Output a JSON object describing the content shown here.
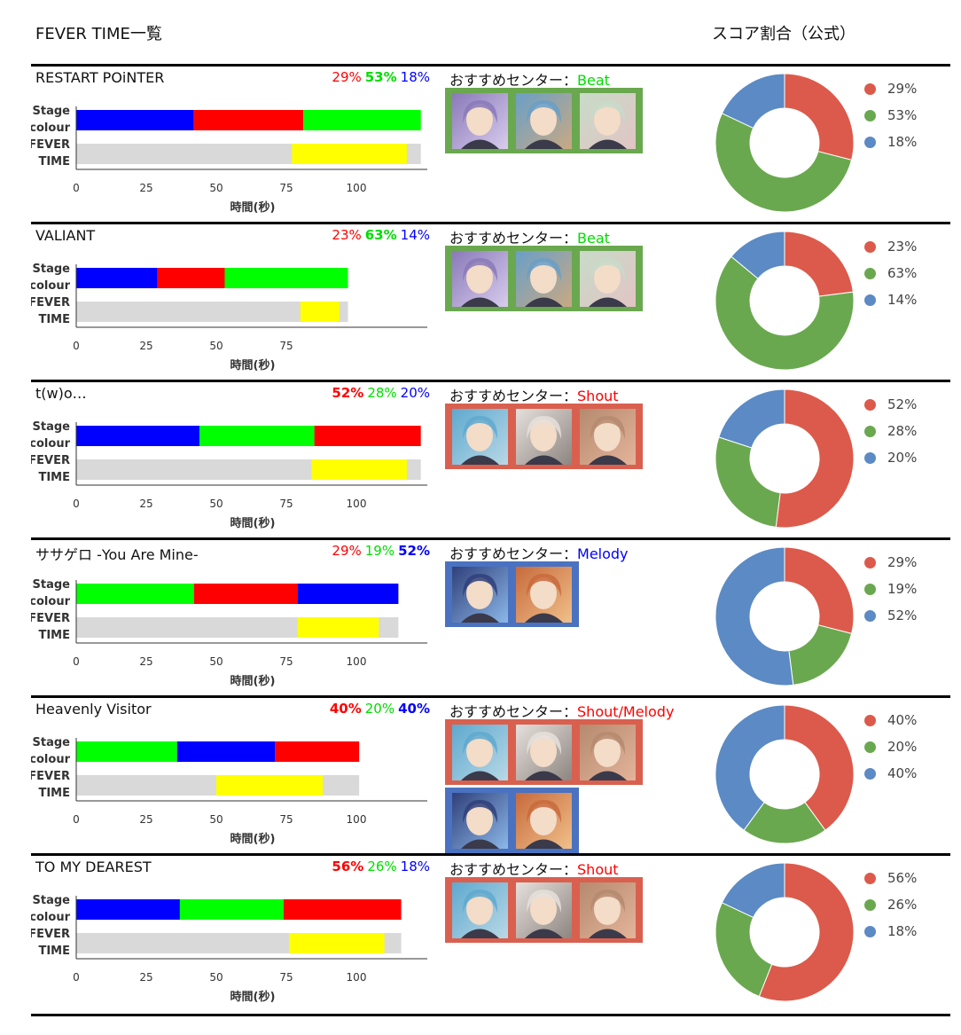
{
  "header": {
    "left_title": "FEVER TIME一覧",
    "right_title": "スコア割合（公式）"
  },
  "labels": {
    "rec_prefix": "おすすめセンター：",
    "stage_line1": "Stage",
    "stage_line2": "colour",
    "fever_line1": "FEVER",
    "fever_line2": "TIME",
    "xlabel": "時間(秒)"
  },
  "colors": {
    "stage_red": "#ff0000",
    "stage_green": "#00ff00",
    "stage_blue": "#0000ff",
    "fever": "#ffff00",
    "fever_track": "#d9d9d9",
    "pie_red": "#dc5a4b",
    "pie_green": "#6aa84f",
    "pie_blue": "#5b8ac4",
    "box_green": "#6aa84f",
    "box_red": "#d9604f",
    "box_blue": "#4a72c0",
    "text_red": "#ff0000",
    "text_green": "#00dd00",
    "text_blue": "#0000ff"
  },
  "chart_data": [
    {
      "type": "bar",
      "title": "RESTART POiNTER",
      "pct_red": "29%",
      "pct_green": "53%",
      "pct_blue": "18%",
      "bold": "green",
      "stage": [
        {
          "color": "blue",
          "start": 0,
          "end": 42
        },
        {
          "color": "red",
          "start": 42,
          "end": 81
        },
        {
          "color": "green",
          "start": 81,
          "end": 123
        }
      ],
      "fever": {
        "start": 77,
        "end": 118
      },
      "total": 123,
      "xticks": [
        0,
        25,
        50,
        75,
        100
      ],
      "rec_center": "Beat",
      "rec_color": "green",
      "card_boxes": [
        {
          "color": "green",
          "cards": [
            {
              "name": "card-purple-hair",
              "c1": "#8a79b8",
              "c2": "#d8ccee"
            },
            {
              "name": "card-brown-hair",
              "c1": "#6a9fc7",
              "c2": "#c9a982"
            },
            {
              "name": "card-pink-hair",
              "c1": "#c8dbc9",
              "c2": "#e2c4c4"
            }
          ]
        }
      ],
      "pie": {
        "red": 29,
        "green": 53,
        "blue": 18
      },
      "legend": [
        "29%",
        "53%",
        "18%"
      ]
    },
    {
      "type": "bar",
      "title": "VALIANT",
      "pct_red": "23%",
      "pct_green": "63%",
      "pct_blue": "14%",
      "bold": "green",
      "stage": [
        {
          "color": "blue",
          "start": 0,
          "end": 29
        },
        {
          "color": "red",
          "start": 29,
          "end": 53
        },
        {
          "color": "green",
          "start": 53,
          "end": 97
        }
      ],
      "fever": {
        "start": 80,
        "end": 94
      },
      "total": 97,
      "xticks": [
        0,
        25,
        50,
        75
      ],
      "rec_center": "Beat",
      "rec_color": "green",
      "card_boxes": [
        {
          "color": "green",
          "cards": [
            {
              "name": "card-purple-hair",
              "c1": "#8a79b8",
              "c2": "#d8ccee"
            },
            {
              "name": "card-brown-hair",
              "c1": "#6a9fc7",
              "c2": "#c9a982"
            },
            {
              "name": "card-pink-hair",
              "c1": "#c8dbc9",
              "c2": "#e2c4c4"
            }
          ]
        }
      ],
      "pie": {
        "red": 23,
        "green": 63,
        "blue": 14
      },
      "legend": [
        "23%",
        "63%",
        "14%"
      ]
    },
    {
      "type": "bar",
      "title": "t(w)o…",
      "pct_red": "52%",
      "pct_green": "28%",
      "pct_blue": "20%",
      "bold": "red",
      "stage": [
        {
          "color": "blue",
          "start": 0,
          "end": 44
        },
        {
          "color": "green",
          "start": 44,
          "end": 85
        },
        {
          "color": "red",
          "start": 85,
          "end": 123
        }
      ],
      "fever": {
        "start": 84,
        "end": 118
      },
      "total": 123,
      "xticks": [
        0,
        25,
        50,
        75,
        100
      ],
      "rec_center": "Shout",
      "rec_color": "red",
      "card_boxes": [
        {
          "color": "red",
          "cards": [
            {
              "name": "card-silver-blue-hair",
              "c1": "#5ea9cf",
              "c2": "#b9d8e6"
            },
            {
              "name": "card-white-hair",
              "c1": "#e6e0dc",
              "c2": "#8d8580"
            },
            {
              "name": "card-light-brown-hair",
              "c1": "#b58a6e",
              "c2": "#e4b49a"
            }
          ]
        }
      ],
      "pie": {
        "red": 52,
        "green": 28,
        "blue": 20
      },
      "legend": [
        "52%",
        "28%",
        "20%"
      ]
    },
    {
      "type": "bar",
      "title": "ササゲロ -You Are Mine-",
      "pct_red": "29%",
      "pct_green": "19%",
      "pct_blue": "52%",
      "bold": "blue",
      "stage": [
        {
          "color": "green",
          "start": 0,
          "end": 42
        },
        {
          "color": "red",
          "start": 42,
          "end": 79
        },
        {
          "color": "blue",
          "start": 79,
          "end": 115
        }
      ],
      "fever": {
        "start": 79,
        "end": 108
      },
      "total": 115,
      "xticks": [
        0,
        25,
        50,
        75,
        100
      ],
      "rec_center": "Melody",
      "rec_color": "blue",
      "card_boxes": [
        {
          "color": "blue",
          "cards": [
            {
              "name": "card-dark-hair",
              "c1": "#2f3f7a",
              "c2": "#8cb8e8"
            },
            {
              "name": "card-orange-hair",
              "c1": "#c86a3c",
              "c2": "#f0c08a"
            }
          ]
        }
      ],
      "pie": {
        "red": 29,
        "green": 19,
        "blue": 52
      },
      "legend": [
        "29%",
        "19%",
        "52%"
      ]
    },
    {
      "type": "bar",
      "title": "Heavenly Visitor",
      "pct_red": "40%",
      "pct_green": "20%",
      "pct_blue": "40%",
      "bold": "redblue",
      "stage": [
        {
          "color": "green",
          "start": 0,
          "end": 36
        },
        {
          "color": "blue",
          "start": 36,
          "end": 71
        },
        {
          "color": "red",
          "start": 71,
          "end": 101
        }
      ],
      "fever": {
        "start": 50,
        "end": 88
      },
      "total": 101,
      "xticks": [
        0,
        25,
        50,
        75,
        100
      ],
      "rec_center": "Shout/Melody",
      "rec_color": "red",
      "card_boxes": [
        {
          "color": "red",
          "cards": [
            {
              "name": "card-silver-blue-hair",
              "c1": "#5ea9cf",
              "c2": "#b9d8e6"
            },
            {
              "name": "card-white-hair",
              "c1": "#e6e0dc",
              "c2": "#8d8580"
            },
            {
              "name": "card-light-brown-hair",
              "c1": "#b58a6e",
              "c2": "#e4b49a"
            }
          ]
        },
        {
          "color": "blue",
          "cards": [
            {
              "name": "card-dark-hair",
              "c1": "#2f3f7a",
              "c2": "#8cb8e8"
            },
            {
              "name": "card-orange-hair",
              "c1": "#c86a3c",
              "c2": "#f0c08a"
            }
          ]
        }
      ],
      "pie": {
        "red": 40,
        "green": 20,
        "blue": 40
      },
      "legend": [
        "40%",
        "20%",
        "40%"
      ]
    },
    {
      "type": "bar",
      "title": "TO MY DEAREST",
      "pct_red": "56%",
      "pct_green": "26%",
      "pct_blue": "18%",
      "bold": "red",
      "stage": [
        {
          "color": "blue",
          "start": 0,
          "end": 37
        },
        {
          "color": "green",
          "start": 37,
          "end": 74
        },
        {
          "color": "red",
          "start": 74,
          "end": 116
        }
      ],
      "fever": {
        "start": 76,
        "end": 110
      },
      "total": 116,
      "xticks": [
        0,
        25,
        50,
        75,
        100
      ],
      "rec_center": "Shout",
      "rec_color": "red",
      "card_boxes": [
        {
          "color": "red",
          "cards": [
            {
              "name": "card-silver-blue-hair",
              "c1": "#5ea9cf",
              "c2": "#b9d8e6"
            },
            {
              "name": "card-white-hair",
              "c1": "#e6e0dc",
              "c2": "#8d8580"
            },
            {
              "name": "card-light-brown-hair",
              "c1": "#b58a6e",
              "c2": "#e4b49a"
            }
          ]
        }
      ],
      "pie": {
        "red": 56,
        "green": 26,
        "blue": 18
      },
      "legend": [
        "56%",
        "26%",
        "18%"
      ]
    }
  ]
}
